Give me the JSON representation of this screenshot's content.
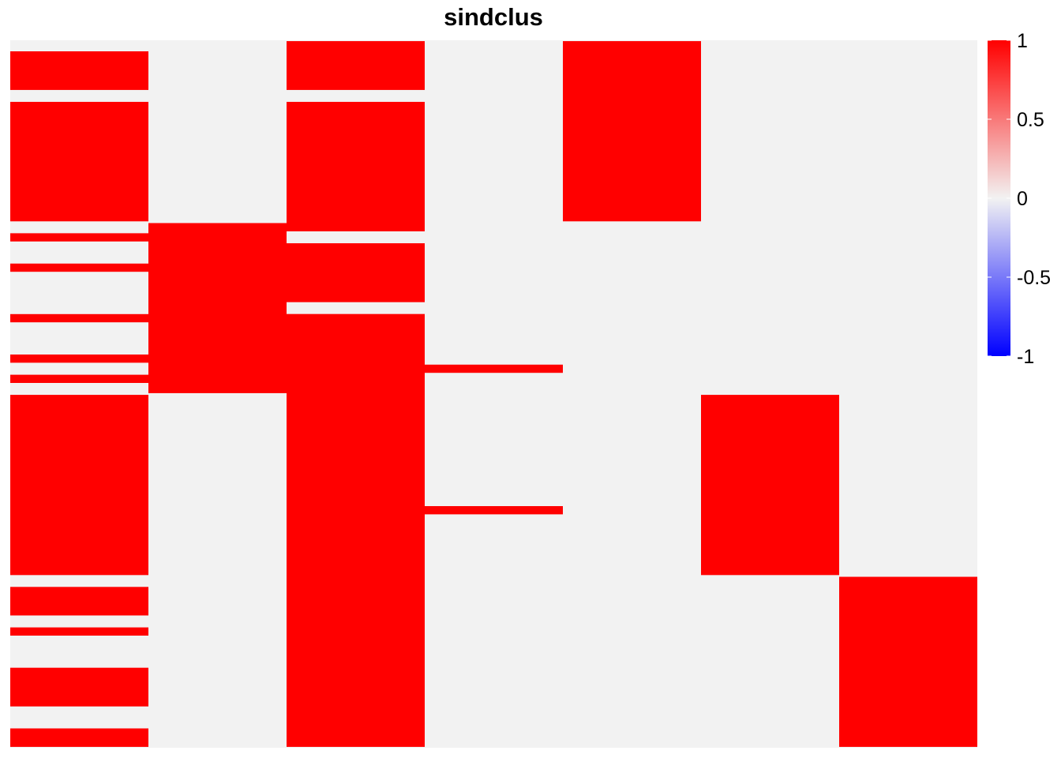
{
  "chart_data": {
    "type": "heatmap",
    "title": "sindclus",
    "xlabel": "",
    "ylabel": "",
    "n_rows": 70,
    "n_cols": 7,
    "color_scale": {
      "min": -1,
      "mid": 0,
      "max": 1,
      "low_color": "#0000ff",
      "mid_color": "#f2f2f2",
      "high_color": "#ff0000",
      "ticks": [
        "1",
        "0.5",
        "0",
        "-0.5",
        "-1"
      ],
      "tick_values": [
        1,
        0.5,
        0,
        -0.5,
        -1
      ]
    },
    "columns": [
      {
        "index": 1,
        "ones_rows": [
          2,
          3,
          4,
          5,
          5,
          7,
          8,
          9,
          10,
          11,
          12,
          13,
          14,
          15,
          16,
          17,
          18,
          20,
          23,
          28,
          32,
          34,
          36,
          36,
          37,
          38,
          39,
          40,
          41,
          42,
          43,
          44,
          45,
          46,
          47,
          48,
          49,
          50,
          51,
          52,
          53,
          55,
          56,
          57,
          59,
          63,
          64,
          65,
          66,
          69,
          70
        ]
      },
      {
        "index": 2,
        "ones_rows": [
          19,
          20,
          21,
          22,
          23,
          24,
          25,
          26,
          27,
          28,
          29,
          30,
          31,
          32,
          33,
          34,
          35
        ]
      },
      {
        "index": 3,
        "ones_rows": [
          1,
          2,
          3,
          4,
          5,
          7,
          8,
          9,
          10,
          11,
          12,
          13,
          14,
          15,
          16,
          17,
          18,
          19,
          21,
          22,
          23,
          24,
          25,
          26,
          28,
          29,
          30,
          31,
          32,
          33,
          34,
          35,
          36,
          37,
          38,
          39,
          40,
          41,
          42,
          43,
          44,
          45,
          46,
          47,
          48,
          49,
          50,
          51,
          52,
          53,
          54,
          55,
          56,
          57,
          58,
          59,
          60,
          61,
          62,
          63,
          64,
          65,
          66,
          67,
          68,
          69,
          70
        ]
      },
      {
        "index": 4,
        "ones_rows": [
          33,
          47
        ]
      },
      {
        "index": 5,
        "ones_rows": [
          1,
          2,
          3,
          4,
          5,
          6,
          7,
          8,
          9,
          10,
          11,
          12,
          13,
          14,
          15,
          16,
          17,
          18
        ]
      },
      {
        "index": 6,
        "ones_rows": [
          36,
          37,
          38,
          39,
          40,
          41,
          42,
          43,
          44,
          45,
          46,
          47,
          48,
          49,
          50,
          51,
          52,
          53
        ]
      },
      {
        "index": 7,
        "ones_rows": [
          54,
          55,
          56,
          57,
          58,
          59,
          60,
          61,
          62,
          63,
          64,
          65,
          66,
          67,
          68,
          69,
          70
        ]
      }
    ]
  }
}
